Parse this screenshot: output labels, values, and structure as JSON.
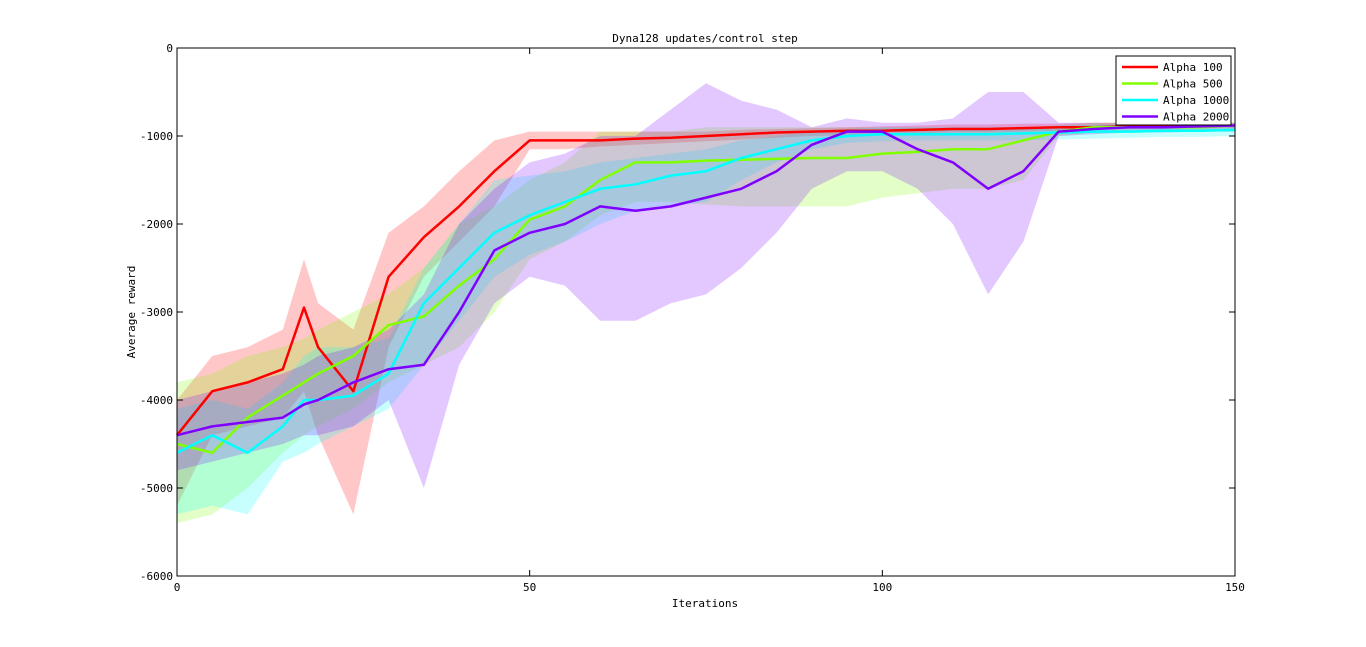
{
  "chart_data": {
    "type": "line",
    "title": "Dyna128 updates/control step",
    "xlabel": "Iterations",
    "ylabel": "Average reward",
    "xlim": [
      0,
      150
    ],
    "ylim": [
      -6000,
      0
    ],
    "xticks": [
      "0",
      "50",
      "100",
      "150"
    ],
    "yticks": [
      "0",
      "-1000",
      "-2000",
      "-3000",
      "-4000",
      "-5000",
      "-6000"
    ],
    "grid": false,
    "legend_position": "top-right",
    "x": [
      0,
      5,
      10,
      15,
      18,
      20,
      25,
      30,
      35,
      40,
      45,
      50,
      55,
      60,
      65,
      70,
      75,
      80,
      85,
      90,
      95,
      100,
      105,
      110,
      115,
      120,
      125,
      130,
      135,
      140,
      145,
      150
    ],
    "series": [
      {
        "name": "Alpha 100",
        "color": "#ff0000",
        "values": [
          -4400,
          -3900,
          -3800,
          -3650,
          -2950,
          -3400,
          -3900,
          -2600,
          -2150,
          -1800,
          -1400,
          -1050,
          -1050,
          -1050,
          -1030,
          -1020,
          -1000,
          -980,
          -960,
          -950,
          -940,
          -940,
          -930,
          -920,
          -920,
          -910,
          -900,
          -900,
          -890,
          -890,
          -880,
          -880
        ],
        "upper": [
          -4000,
          -3500,
          -3400,
          -3200,
          -2400,
          -2900,
          -3200,
          -2100,
          -1800,
          -1400,
          -1050,
          -950,
          -950,
          -950,
          -950,
          -950,
          -950,
          -930,
          -920,
          -910,
          -900,
          -890,
          -880,
          -870,
          -870,
          -860,
          -860,
          -850,
          -850,
          -850,
          -850,
          -850
        ],
        "lower": [
          -5200,
          -4400,
          -4300,
          -4200,
          -3900,
          -4400,
          -5300,
          -3400,
          -2600,
          -2200,
          -1800,
          -1150,
          -1150,
          -1120,
          -1100,
          -1080,
          -1060,
          -1040,
          -1020,
          -1000,
          -990,
          -980,
          -970,
          -960,
          -960,
          -950,
          -940,
          -930,
          -920,
          -920,
          -910,
          -910
        ]
      },
      {
        "name": "Alpha 500",
        "color": "#80ff00",
        "values": [
          -4500,
          -4600,
          -4200,
          -3950,
          -3800,
          -3700,
          -3500,
          -3150,
          -3050,
          -2700,
          -2400,
          -1950,
          -1800,
          -1500,
          -1300,
          -1300,
          -1280,
          -1270,
          -1260,
          -1250,
          -1250,
          -1200,
          -1180,
          -1150,
          -1150,
          -1050,
          -950,
          -900,
          -900,
          -900,
          -900,
          -880
        ],
        "upper": [
          -3800,
          -3700,
          -3500,
          -3400,
          -3300,
          -3200,
          -3000,
          -2800,
          -2500,
          -2000,
          -1800,
          -1500,
          -1300,
          -950,
          -950,
          -950,
          -900,
          -900,
          -900,
          -900,
          -900,
          -900,
          -900,
          -900,
          -900,
          -900,
          -880,
          -850,
          -850,
          -850,
          -850,
          -850
        ],
        "lower": [
          -5400,
          -5300,
          -5000,
          -4600,
          -4400,
          -4300,
          -4100,
          -3800,
          -3600,
          -3400,
          -3000,
          -2400,
          -2200,
          -1900,
          -1750,
          -1750,
          -1780,
          -1800,
          -1800,
          -1800,
          -1800,
          -1700,
          -1650,
          -1600,
          -1600,
          -1500,
          -1000,
          -960,
          -960,
          -950,
          -950,
          -950
        ]
      },
      {
        "name": "Alpha 1000",
        "color": "#00ffff",
        "values": [
          -4600,
          -4400,
          -4600,
          -4300,
          -4000,
          -4000,
          -3950,
          -3700,
          -2900,
          -2500,
          -2100,
          -1900,
          -1750,
          -1600,
          -1550,
          -1450,
          -1400,
          -1250,
          -1150,
          -1050,
          -1000,
          -980,
          -980,
          -980,
          -980,
          -970,
          -960,
          -950,
          -950,
          -940,
          -940,
          -930
        ],
        "upper": [
          -4100,
          -4000,
          -4100,
          -3800,
          -3500,
          -3400,
          -3400,
          -3300,
          -2500,
          -2000,
          -1500,
          -1450,
          -1400,
          -1300,
          -1250,
          -1200,
          -1150,
          -1050,
          -1000,
          -950,
          -920,
          -900,
          -900,
          -900,
          -900,
          -900,
          -880,
          -870,
          -870,
          -860,
          -860,
          -860
        ],
        "lower": [
          -5300,
          -5200,
          -5300,
          -4700,
          -4600,
          -4500,
          -4300,
          -4100,
          -3600,
          -3100,
          -2600,
          -2350,
          -2200,
          -2000,
          -1850,
          -1800,
          -1750,
          -1500,
          -1300,
          -1150,
          -1080,
          -1060,
          -1050,
          -1050,
          -1050,
          -1050,
          -1040,
          -1030,
          -1020,
          -1010,
          -1010,
          -1000
        ]
      },
      {
        "name": "Alpha 2000",
        "color": "#8000ff",
        "values": [
          -4400,
          -4300,
          -4250,
          -4200,
          -4050,
          -4000,
          -3800,
          -3650,
          -3600,
          -3000,
          -2300,
          -2100,
          -2000,
          -1800,
          -1850,
          -1800,
          -1700,
          -1600,
          -1400,
          -1100,
          -950,
          -950,
          -1150,
          -1300,
          -1600,
          -1400,
          -950,
          -920,
          -900,
          -900,
          -890,
          -880
        ],
        "upper": [
          -4000,
          -3900,
          -3800,
          -3700,
          -3600,
          -3500,
          -3400,
          -3200,
          -2800,
          -2000,
          -1600,
          -1300,
          -1200,
          -1000,
          -1000,
          -700,
          -400,
          -600,
          -700,
          -900,
          -800,
          -850,
          -850,
          -800,
          -500,
          -500,
          -850,
          -850,
          -850,
          -850,
          -850,
          -850
        ],
        "lower": [
          -4800,
          -4700,
          -4600,
          -4500,
          -4400,
          -4400,
          -4300,
          -4000,
          -5000,
          -3600,
          -2900,
          -2600,
          -2700,
          -3100,
          -3100,
          -2900,
          -2800,
          -2500,
          -2100,
          -1600,
          -1400,
          -1400,
          -1600,
          -2000,
          -2800,
          -2200,
          -1000,
          -980,
          -960,
          -960,
          -950,
          -950
        ]
      }
    ]
  }
}
